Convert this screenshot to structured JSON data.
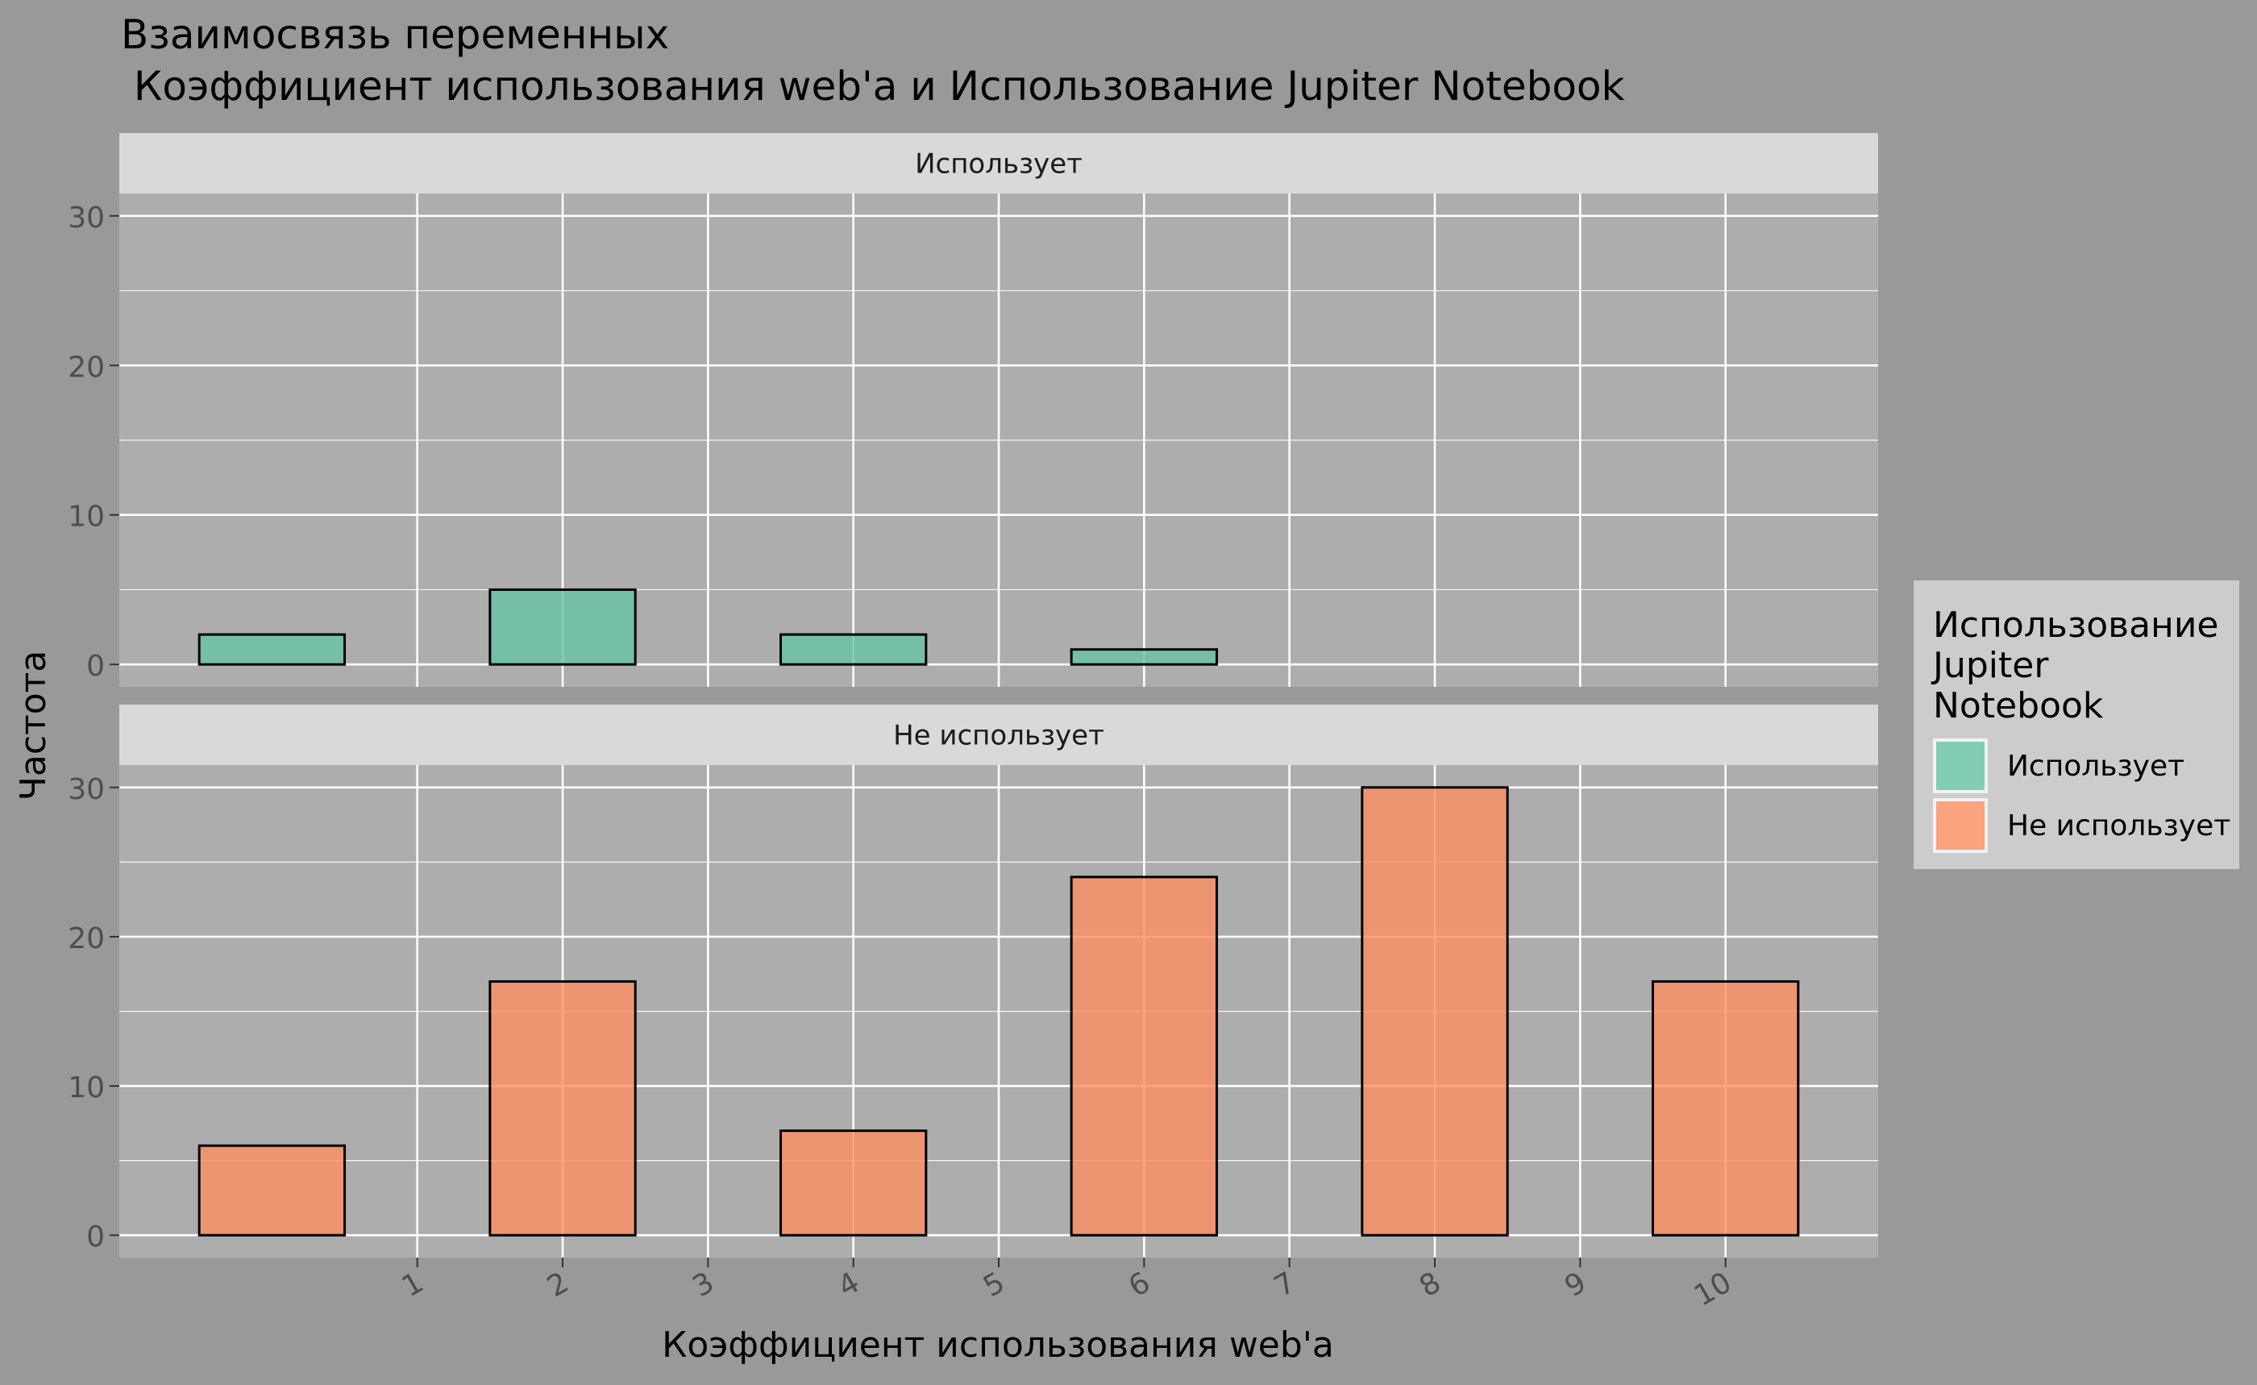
{
  "chart_data": {
    "type": "bar",
    "title_line1": "Взаимосвязь переменных",
    "title_line2": " Коэффициент использования web'a и Использование Jupiter Notebook",
    "xlabel": "Коэффициент использования web'a",
    "ylabel": "Частота",
    "x_ticks": [
      1,
      2,
      3,
      4,
      5,
      6,
      7,
      8,
      9,
      10
    ],
    "x_tick_labels": [
      "1",
      "2",
      "3",
      "4",
      "5",
      "6",
      "7",
      "8",
      "9",
      "10"
    ],
    "y_ticks": [
      0,
      10,
      20,
      30
    ],
    "y_tick_labels": [
      "0",
      "10",
      "20",
      "30"
    ],
    "ylim": [
      -1.5,
      31.5
    ],
    "xlim": [
      -1.05,
      11.05
    ],
    "grid": true,
    "bin_width": 1,
    "bin_starts": [
      -0.5,
      0.5,
      1.5,
      2.5,
      3.5,
      4.5,
      5.5,
      6.5,
      7.5,
      8.5,
      9.5
    ],
    "panels": [
      {
        "strip": "Использует",
        "color": "#66C2A5",
        "values": [
          2,
          0,
          5,
          0,
          2,
          0,
          1,
          0,
          0,
          0,
          0
        ]
      },
      {
        "strip": "Не использует",
        "color": "#FC8D62",
        "values": [
          6,
          0,
          17,
          0,
          7,
          0,
          24,
          0,
          30,
          0,
          17
        ]
      }
    ],
    "legend": {
      "position": "right",
      "title_lines": [
        "Использование",
        "Jupiter",
        "Notebook"
      ],
      "items": [
        {
          "label": "Использует",
          "color": "#66C2A5"
        },
        {
          "label": "Не использует",
          "color": "#FC8D62"
        }
      ]
    },
    "colors": {
      "plot_background": "#999999",
      "panel_background": "#ADADAD",
      "strip_background": "#D9D9D9",
      "grid": "#FFFFFF",
      "bar_outline": "#000000"
    }
  }
}
